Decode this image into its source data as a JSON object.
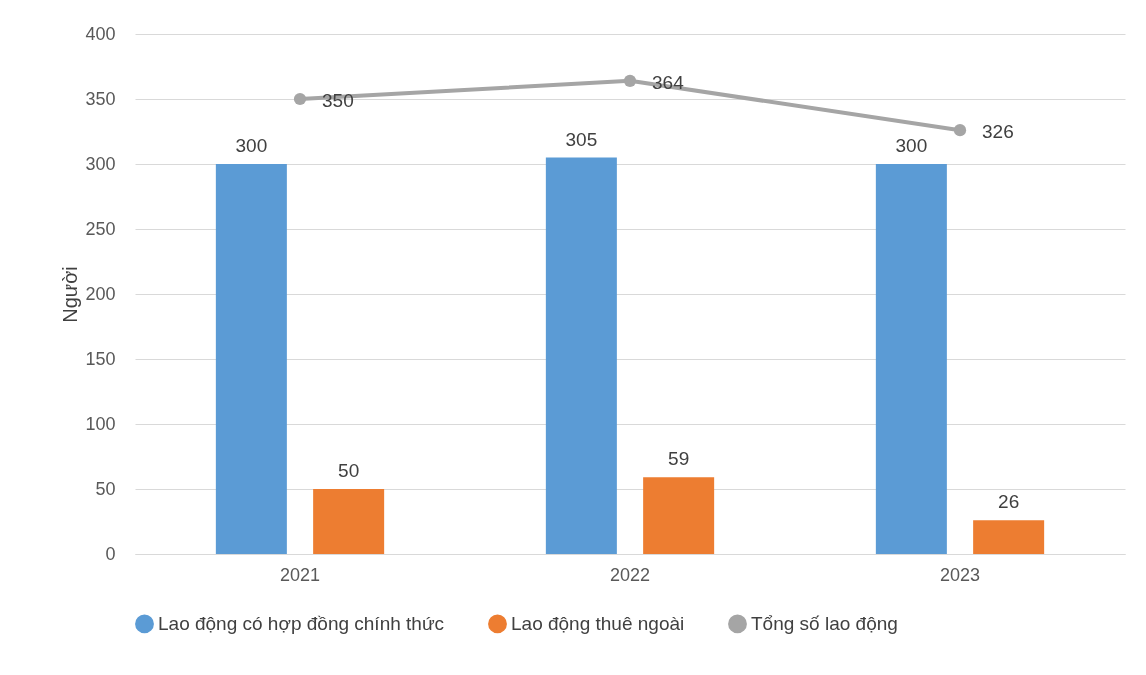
{
  "chart_data": {
    "type": "bar",
    "ylabel": "Người",
    "categories": [
      "2021",
      "2022",
      "2023"
    ],
    "series": [
      {
        "name": "Lao động có hợp đồng chính thức",
        "color": "#5b9bd5",
        "values": [
          300,
          305,
          300
        ]
      },
      {
        "name": "Lao động thuê ngoài",
        "color": "#ed7d31",
        "values": [
          50,
          59,
          26
        ]
      },
      {
        "name": "Tổng số lao động",
        "type": "line",
        "color": "#a5a5a5",
        "values": [
          350,
          364,
          326
        ]
      }
    ],
    "ylim": [
      0,
      400
    ],
    "yticks": [
      0,
      50,
      100,
      150,
      200,
      250,
      300,
      350,
      400
    ],
    "grid": "y",
    "legend": "bottom",
    "marker": "circle",
    "line_style": "solid",
    "data_labels": true
  }
}
